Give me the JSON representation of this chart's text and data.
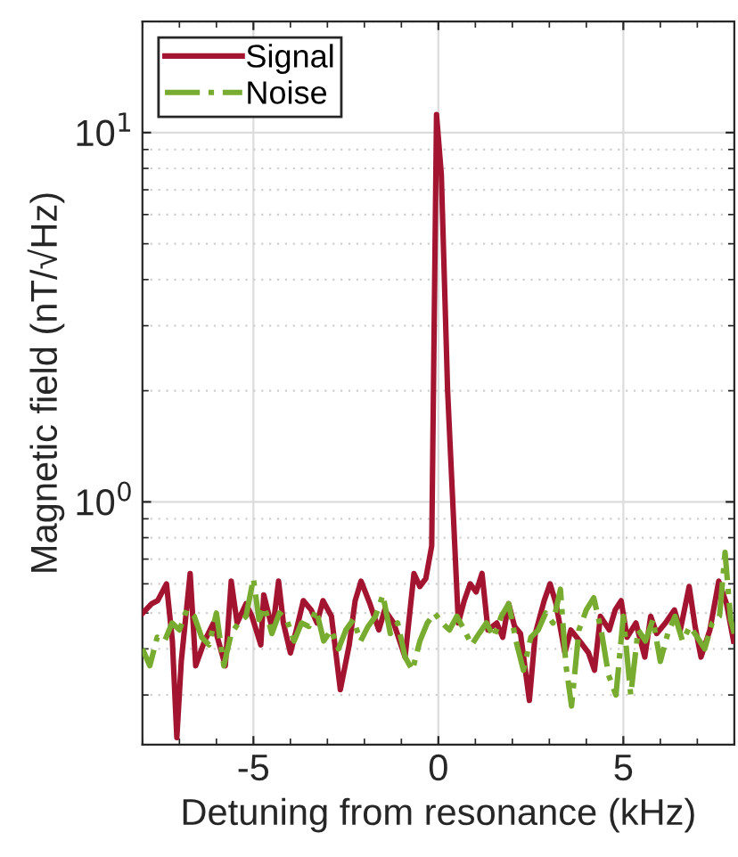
{
  "chart_data": {
    "type": "line",
    "xlabel": "Detuning from resonance (kHz)",
    "ylabel": "Magnetic field (nT/√Hz)",
    "log": "y",
    "xlim": [
      -8,
      8
    ],
    "xticks": [
      -5,
      0,
      5
    ],
    "ylim": [
      0.22,
      20
    ],
    "yticks": [
      {
        "value": 1,
        "label": "10$^{0}$"
      },
      {
        "value": 10,
        "label": "10$^{1}$"
      }
    ],
    "grid": true,
    "legend": "top left",
    "series": [
      {
        "name": "Signal",
        "color": "#a2142f",
        "line_style": "solid",
        "x": [
          -7.99,
          -7.75,
          -7.59,
          -7.35,
          -7.19,
          -7.07,
          -6.95,
          -6.71,
          -6.56,
          -6.32,
          -6.08,
          -5.76,
          -5.6,
          -5.44,
          -5.2,
          -5.04,
          -4.8,
          -4.72,
          -4.48,
          -4.32,
          -4.19,
          -4.0,
          -3.84,
          -3.65,
          -3.44,
          -3.28,
          -3.12,
          -2.89,
          -2.65,
          -2.41,
          -2.25,
          -2.09,
          -1.85,
          -1.61,
          -1.45,
          -1.21,
          -0.9,
          -0.66,
          -0.5,
          -0.34,
          -0.18,
          -0.05,
          0.08,
          0.25,
          0.54,
          0.7,
          0.86,
          1.02,
          1.18,
          1.34,
          1.58,
          1.74,
          1.9,
          2.06,
          2.22,
          2.46,
          2.62,
          2.86,
          3.02,
          3.18,
          3.42,
          3.58,
          3.82,
          4.06,
          4.22,
          4.38,
          4.62,
          4.78,
          4.94,
          5.1,
          5.34,
          5.58,
          5.74,
          5.9,
          6.14,
          6.38,
          6.54,
          6.78,
          6.94,
          7.1,
          7.34,
          7.58,
          7.79,
          7.98
        ],
        "values": [
          0.5,
          0.53,
          0.54,
          0.6,
          0.42,
          0.23,
          0.37,
          0.64,
          0.36,
          0.42,
          0.47,
          0.36,
          0.61,
          0.47,
          0.53,
          0.49,
          0.41,
          0.56,
          0.45,
          0.61,
          0.47,
          0.39,
          0.45,
          0.54,
          0.51,
          0.47,
          0.54,
          0.49,
          0.31,
          0.41,
          0.54,
          0.61,
          0.53,
          0.45,
          0.51,
          0.47,
          0.38,
          0.64,
          0.59,
          0.62,
          0.76,
          11.2,
          7.7,
          2.0,
          0.47,
          0.54,
          0.6,
          0.57,
          0.64,
          0.45,
          0.47,
          0.43,
          0.53,
          0.46,
          0.44,
          0.29,
          0.44,
          0.54,
          0.6,
          0.53,
          0.39,
          0.45,
          0.42,
          0.39,
          0.35,
          0.49,
          0.45,
          0.51,
          0.54,
          0.43,
          0.47,
          0.38,
          0.49,
          0.44,
          0.47,
          0.51,
          0.45,
          0.59,
          0.46,
          0.38,
          0.45,
          0.61,
          0.53,
          0.42
        ]
      },
      {
        "name": "Noise",
        "color": "#77ac30",
        "line_style": "dashdot",
        "x": [
          -8.0,
          -7.8,
          -7.6,
          -7.4,
          -7.2,
          -7.0,
          -6.8,
          -6.6,
          -6.4,
          -6.2,
          -6.0,
          -5.8,
          -5.6,
          -5.4,
          -5.2,
          -5.0,
          -4.85,
          -4.7,
          -4.5,
          -4.3,
          -4.1,
          -3.9,
          -3.7,
          -3.5,
          -3.3,
          -3.1,
          -2.9,
          -2.7,
          -2.5,
          -2.3,
          -2.1,
          -1.9,
          -1.7,
          -1.5,
          -1.3,
          -1.1,
          -0.9,
          -0.7,
          -0.5,
          -0.3,
          -0.1,
          0.1,
          0.3,
          0.5,
          0.7,
          0.9,
          1.1,
          1.3,
          1.5,
          1.7,
          1.9,
          2.1,
          2.3,
          2.5,
          2.7,
          2.9,
          3.1,
          3.3,
          3.45,
          3.6,
          3.8,
          4.0,
          4.2,
          4.4,
          4.6,
          4.8,
          5.0,
          5.2,
          5.4,
          5.6,
          5.8,
          6.0,
          6.2,
          6.4,
          6.6,
          6.8,
          7.0,
          7.2,
          7.4,
          7.6,
          7.75,
          7.9,
          8.0
        ],
        "values": [
          0.4,
          0.36,
          0.43,
          0.42,
          0.47,
          0.45,
          0.51,
          0.49,
          0.43,
          0.41,
          0.5,
          0.36,
          0.44,
          0.47,
          0.49,
          0.62,
          0.48,
          0.52,
          0.44,
          0.5,
          0.48,
          0.42,
          0.47,
          0.46,
          0.51,
          0.42,
          0.45,
          0.4,
          0.45,
          0.48,
          0.42,
          0.46,
          0.49,
          0.56,
          0.44,
          0.47,
          0.38,
          0.35,
          0.42,
          0.47,
          0.5,
          0.47,
          0.45,
          0.49,
          0.45,
          0.41,
          0.44,
          0.47,
          0.43,
          0.49,
          0.53,
          0.42,
          0.35,
          0.43,
          0.45,
          0.5,
          0.47,
          0.58,
          0.36,
          0.28,
          0.45,
          0.51,
          0.55,
          0.45,
          0.34,
          0.3,
          0.49,
          0.3,
          0.45,
          0.42,
          0.48,
          0.37,
          0.44,
          0.49,
          0.42,
          0.46,
          0.43,
          0.4,
          0.47,
          0.49,
          0.73,
          0.48,
          0.44
        ]
      }
    ]
  }
}
